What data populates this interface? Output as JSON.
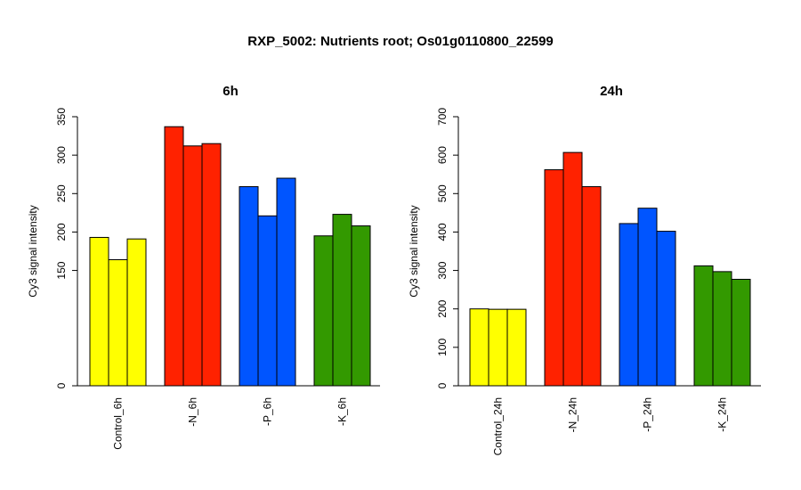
{
  "title": "RXP_5002: Nutrients root; Os01g0110800_22599",
  "colors": {
    "control": "#ffff00",
    "N": "#ff2200",
    "P": "#0055ff",
    "K": "#339900",
    "axis": "#000000"
  },
  "chart_data": [
    {
      "type": "bar",
      "title": "6h",
      "xlabel": "",
      "ylabel": "Cy3 signal intensity",
      "ylim": [
        0,
        350
      ],
      "yticks": [
        0,
        150,
        200,
        250,
        300,
        350
      ],
      "categories": [
        "Control_6h",
        "-N_6h",
        "-P_6h",
        "-K_6h"
      ],
      "values": [
        [
          193,
          164,
          191
        ],
        [
          337,
          312,
          315
        ],
        [
          259,
          221,
          270
        ],
        [
          195,
          223,
          208
        ]
      ],
      "group_colors": [
        "#ffff00",
        "#ff2200",
        "#0055ff",
        "#339900"
      ],
      "grid": false,
      "legend": "none"
    },
    {
      "type": "bar",
      "title": "24h",
      "xlabel": "",
      "ylabel": "Cy3 signal intensity",
      "ylim": [
        0,
        700
      ],
      "yticks": [
        0,
        100,
        200,
        300,
        400,
        500,
        600,
        700
      ],
      "categories": [
        "Control_24h",
        "-N_24h",
        "-P_24h",
        "-K_24h"
      ],
      "values": [
        [
          200,
          199,
          199
        ],
        [
          562,
          607,
          518
        ],
        [
          422,
          462,
          402
        ],
        [
          312,
          297,
          277
        ]
      ],
      "group_colors": [
        "#ffff00",
        "#ff2200",
        "#0055ff",
        "#339900"
      ],
      "grid": false,
      "legend": "none"
    }
  ]
}
